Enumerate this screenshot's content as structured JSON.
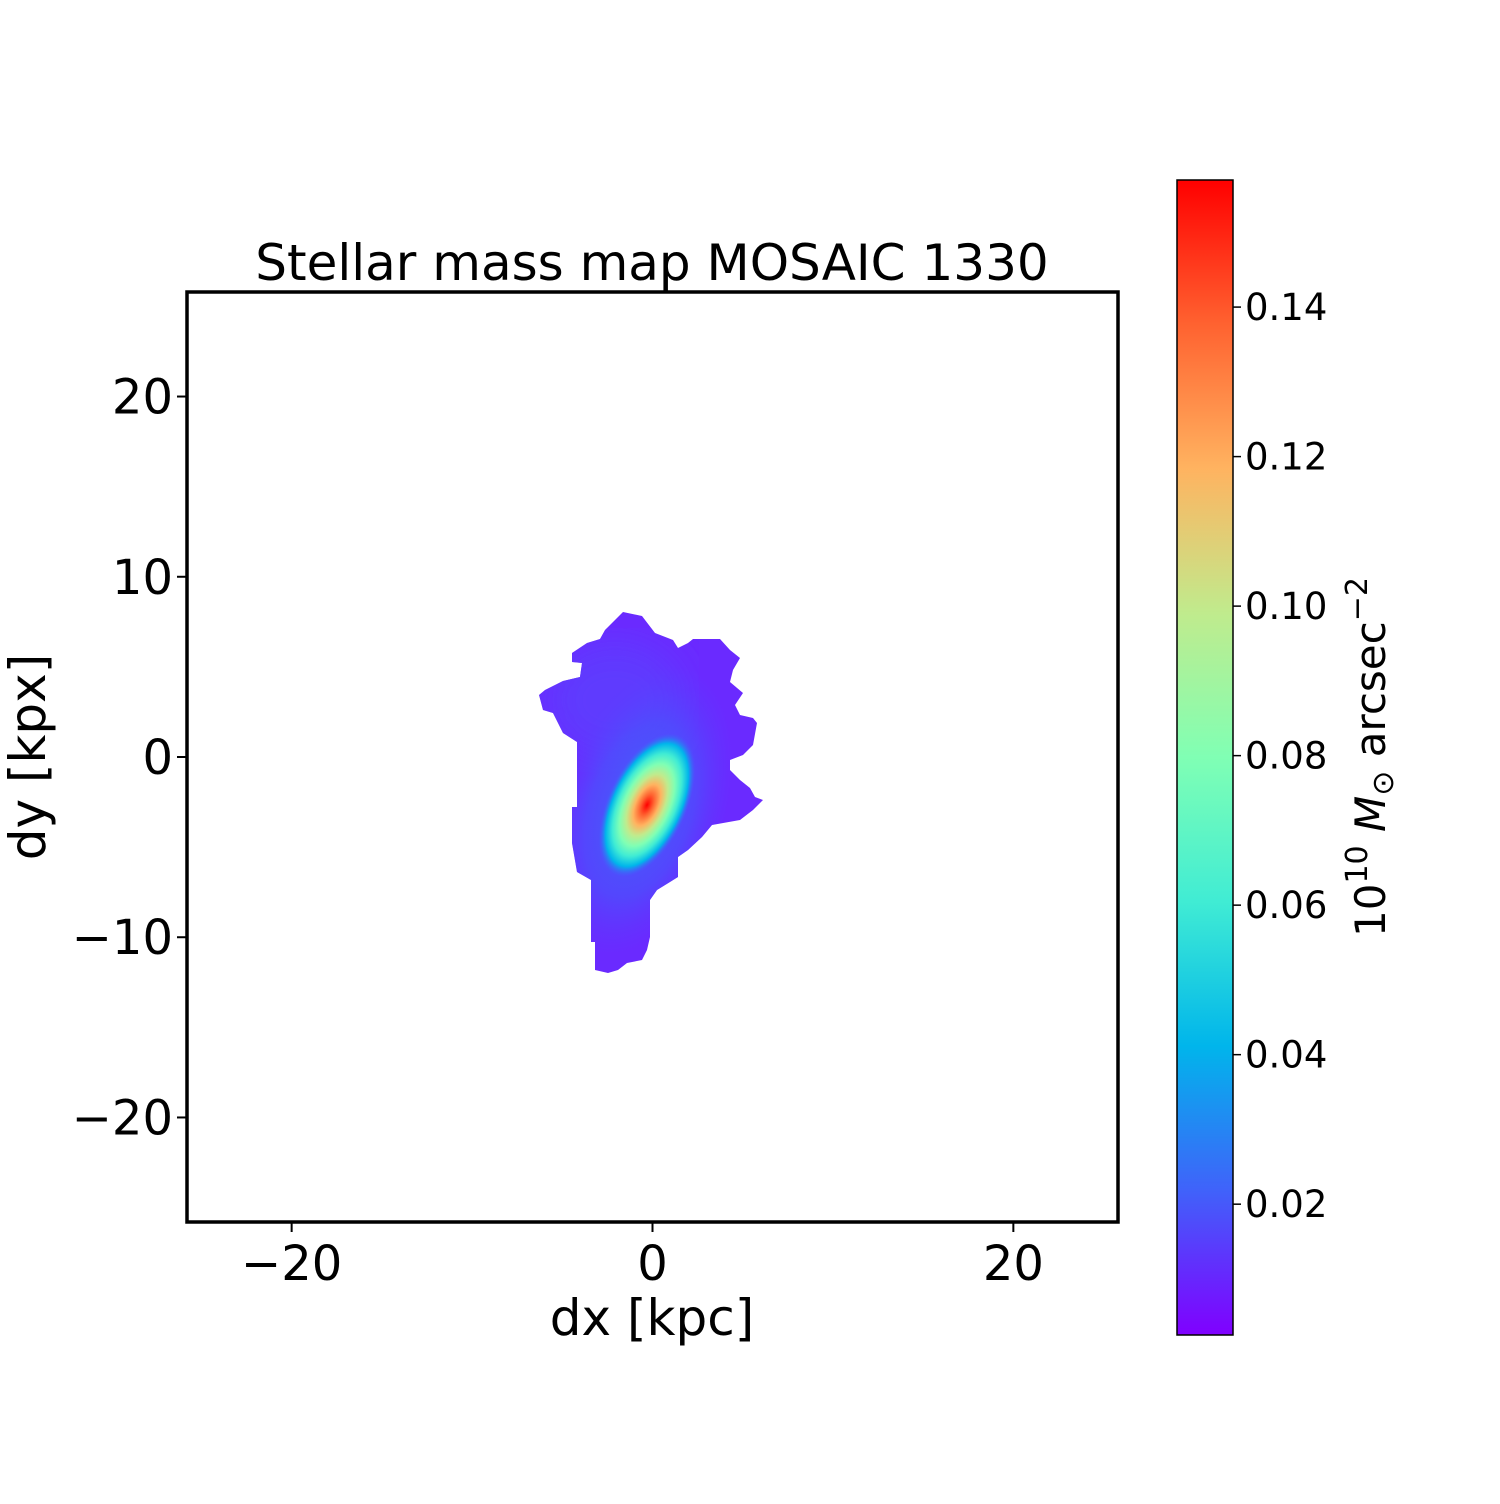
{
  "chart_data": {
    "type": "heatmap",
    "title": "Stellar mass map MOSAIC 1330",
    "xlabel": "dx [kpc]",
    "ylabel": "dy [kpx]",
    "xlim": [
      -25.8,
      25.8
    ],
    "ylim": [
      -25.8,
      25.8
    ],
    "xticks": [
      {
        "value": -20,
        "label": "−20"
      },
      {
        "value": 0,
        "label": "0"
      },
      {
        "value": 20,
        "label": "20"
      }
    ],
    "yticks": [
      {
        "value": -20,
        "label": "−20"
      },
      {
        "value": -10,
        "label": "−10"
      },
      {
        "value": 0,
        "label": "0"
      },
      {
        "value": 10,
        "label": "10"
      },
      {
        "value": 20,
        "label": "20"
      }
    ],
    "grid": false,
    "colormap": "rainbow",
    "colorbar": {
      "label_base": "10",
      "label_exp": "10",
      "label_symbol": "M",
      "label_sub": "⊙",
      "label_unit": " arcsec",
      "label_unit_exp": "−2",
      "range": [
        0.0025,
        0.157
      ],
      "ticks": [
        {
          "value": 0.02,
          "label": "0.02"
        },
        {
          "value": 0.04,
          "label": "0.04"
        },
        {
          "value": 0.06,
          "label": "0.06"
        },
        {
          "value": 0.08,
          "label": "0.08"
        },
        {
          "value": 0.1,
          "label": "0.10"
        },
        {
          "value": 0.12,
          "label": "0.12"
        },
        {
          "value": 0.14,
          "label": "0.14"
        }
      ],
      "colors": [
        "#8000ff",
        "#4062fa",
        "#00b5eb",
        "#40ecd4",
        "#80ffb4",
        "#c0eb8d",
        "#ffb360",
        "#ff6230",
        "#ff0000"
      ]
    },
    "peak": {
      "dx": -0.3,
      "dy": -2.8,
      "value": 0.157
    },
    "source_extent": {
      "dx": [
        -6.2,
        6.1
      ],
      "dy": [
        -11.8,
        8.0
      ]
    }
  }
}
